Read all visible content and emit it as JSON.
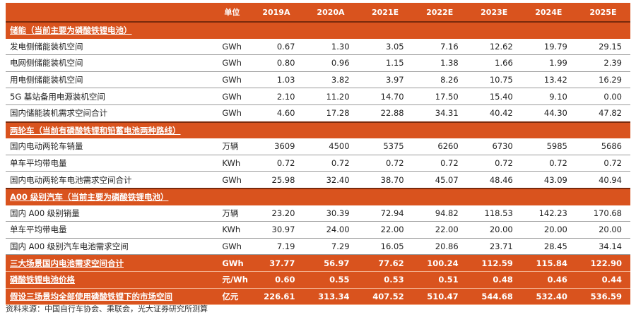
{
  "header": {
    "unit": "单位",
    "years": [
      "2019A",
      "2020A",
      "2021E",
      "2022E",
      "2023E",
      "2024E",
      "2025E"
    ]
  },
  "sections": [
    {
      "title": "储能（当前主要为磷酸铁锂电池）",
      "rows": [
        {
          "label": "发电侧储能装机空间",
          "unit": "GWh",
          "values": [
            "0.67",
            "1.30",
            "3.05",
            "7.16",
            "12.62",
            "19.79",
            "29.15"
          ]
        },
        {
          "label": "电网侧储能装机空间",
          "unit": "GWh",
          "values": [
            "0.80",
            "0.96",
            "1.15",
            "1.38",
            "1.66",
            "1.99",
            "2.39"
          ]
        },
        {
          "label": "用电侧储能装机空间",
          "unit": "GWh",
          "values": [
            "1.03",
            "3.82",
            "3.97",
            "8.26",
            "10.75",
            "13.42",
            "16.29"
          ]
        },
        {
          "label": "5G 基站备用电源装机空间",
          "unit": "GWh",
          "values": [
            "2.10",
            "11.20",
            "14.70",
            "17.50",
            "15.40",
            "9.10",
            "0.00"
          ]
        },
        {
          "label": "国内储能装机需求空间合计",
          "unit": "GWh",
          "values": [
            "4.60",
            "17.28",
            "22.88",
            "34.31",
            "40.42",
            "44.30",
            "47.82"
          ]
        }
      ]
    },
    {
      "title": "两轮车（当前有磷酸铁锂和铅蓄电池两种路线）",
      "rows": [
        {
          "label": "国内电动两轮车销量",
          "unit": "万辆",
          "values": [
            "3609",
            "4500",
            "5375",
            "6260",
            "6730",
            "5985",
            "5686"
          ]
        },
        {
          "label": "单车平均带电量",
          "unit": "KWh",
          "values": [
            "0.72",
            "0.72",
            "0.72",
            "0.72",
            "0.72",
            "0.72",
            "0.72"
          ]
        },
        {
          "label": "国内电动两轮车电池需求空间合计",
          "unit": "GWh",
          "values": [
            "25.98",
            "32.40",
            "38.70",
            "45.07",
            "48.46",
            "43.09",
            "40.94"
          ]
        }
      ]
    },
    {
      "title": "A00 级别汽车（当前主要为磷酸铁锂电池）",
      "rows": [
        {
          "label": "国内 A00 级别销量",
          "unit": "万辆",
          "values": [
            "23.20",
            "30.39",
            "72.94",
            "94.82",
            "118.53",
            "142.23",
            "170.68"
          ]
        },
        {
          "label": "单车平均带电量",
          "unit": "KWh",
          "values": [
            "30.97",
            "24.00",
            "22.00",
            "22.00",
            "20.00",
            "20.00",
            "20.00"
          ]
        },
        {
          "label": "国内 A00 级别汽车电池需求空间",
          "unit": "GWh",
          "values": [
            "7.19",
            "7.29",
            "16.05",
            "20.86",
            "23.71",
            "28.45",
            "34.14"
          ]
        }
      ]
    }
  ],
  "totals": [
    {
      "label": "三大场景国内电池需求空间合计",
      "unit": "GWh",
      "values": [
        "37.77",
        "56.97",
        "77.62",
        "100.24",
        "112.59",
        "115.84",
        "122.90"
      ]
    },
    {
      "label": "磷酸铁锂电池价格",
      "unit": "元/Wh",
      "values": [
        "0.60",
        "0.55",
        "0.53",
        "0.51",
        "0.48",
        "0.46",
        "0.44"
      ]
    },
    {
      "label": "假设三场景均全部使用磷酸铁锂下的市场空间",
      "unit": "亿元",
      "values": [
        "226.61",
        "313.34",
        "407.52",
        "510.47",
        "544.68",
        "532.40",
        "536.59"
      ]
    }
  ],
  "source": "资料来源：中国自行车协会、乘联会，光大证券研究所测算",
  "colors": {
    "accent": "#d9531e"
  }
}
